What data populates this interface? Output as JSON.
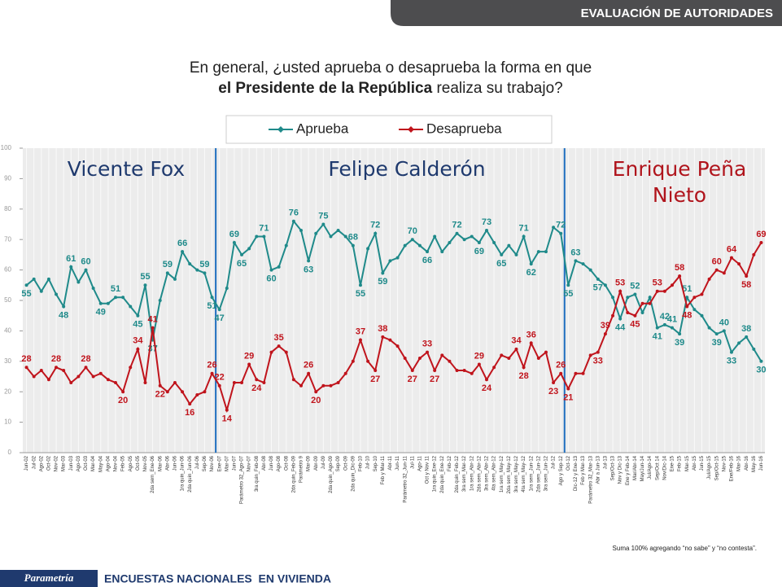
{
  "header": "EVALUACIÓN DE AUTORIDADES",
  "question": {
    "line1": "En general, ¿usted aprueba o desaprueba la forma en que",
    "line2_bold": "el Presidente de la República",
    "line2_rest": " realiza su trabajo?"
  },
  "periods": [
    "Vicente Fox",
    "Felipe Calderón",
    "Enrique Peña Nieto"
  ],
  "note": "Suma 100% agregando “no sabe” y “no contesta”.",
  "footer": {
    "brand": "Parametría",
    "text": "ENCUESTAS NACIONALES  EN VIVIENDA"
  },
  "chart_data": {
    "type": "line",
    "ylim": [
      0,
      100
    ],
    "yticks": [
      0,
      10,
      20,
      30,
      40,
      50,
      60,
      70,
      80,
      90,
      100
    ],
    "categories": [
      "Jun-02",
      "Jul-02",
      "Ago-02",
      "Oct-02",
      "Nov-02",
      "Mar-03",
      "Jun-03",
      "Ago-03",
      "Oct-03",
      "Mar-04",
      "May-04",
      "Ago-04",
      "Nov-04",
      "Feb-05",
      "Ago-05",
      "Oct-05",
      "Nov-05",
      "2da sem_Ene-06",
      "Mar-06",
      "Abr-06",
      "Jun-06",
      "1ra quin_Jun-06",
      "2da quin_Jun-06",
      "Jul-06",
      "Sep-06",
      "Nov-06",
      "Ene-07",
      "Mar-07",
      "Jun-07",
      "Parámetro 32_Ago-07",
      "Nov-07",
      "3ra quin_Feb-08",
      "Abr-08",
      "Jun-08",
      "Ago-08",
      "Oct-08",
      "2da quin_Feb-09",
      "Parámetro 9",
      "Mar-09",
      "Abr-09",
      "Jul-09",
      "2da quin_Ago-09",
      "Sep-09",
      "Oct-09",
      "2da quin_Dic-09",
      "Feb-10",
      "Jul-10",
      "Sep-10",
      "Feb y Mar-11",
      "Abr-11",
      "Jun-11",
      "Parámetro 32_Jun-11",
      "Jul-11",
      "Ago-11",
      "Oct y Nov 11",
      "1ra quin_Ene-12",
      "2da quin_Ene-12",
      "Feb-12",
      "2da quin_Feb-12",
      "3ra sem_Mar-12",
      "1ra sem_Abr-12",
      "2da sem_Abr-12",
      "3ra sem_Abr-12",
      "4ta sem_Abr-12",
      "1ra sem_May-12",
      "2da sem_May-12",
      "3ra sem_May-12",
      "4ta sem_May-12",
      "1ra sem_Jun-12",
      "2da sem_Jun-12",
      "3ra sem_Jun-12",
      "Jul-12",
      "Ago y Sep-12",
      "Oct-12",
      "Dic-12 y Ene-13",
      "Feb y Mar-13",
      "Parámetro 32_Mar-13",
      "Abr a Jun-13",
      "Jul-13",
      "Sep/Oct-13",
      "Nov y Dic-13",
      "Ene y Feb-14",
      "Mar/Abr-14",
      "May/Jun-14",
      "Jul/Ago-14",
      "Sep/Oct 14",
      "Nov/Dic-14",
      "Ene-15",
      "Feb-15",
      "Mar-15",
      "Abr-15",
      "Jun-15",
      "Jul/Ago-15",
      "Sep/Oct-15",
      "Nov-15",
      "Ene/Feb-16",
      "Mar-16",
      "Abr-16",
      "May-16",
      "Jun-16"
    ],
    "series": [
      {
        "name": "Aprueba",
        "color": "#1f8a8a",
        "values": [
          55,
          57,
          53,
          57,
          52,
          48,
          61,
          56,
          60,
          54,
          49,
          49,
          51,
          51,
          48,
          45,
          55,
          37,
          50,
          59,
          57,
          66,
          62,
          60,
          59,
          51,
          47,
          54,
          69,
          65,
          67,
          71,
          71,
          60,
          61,
          68,
          76,
          73,
          63,
          72,
          75,
          71,
          73,
          71,
          68,
          55,
          67,
          72,
          59,
          63,
          64,
          68,
          70,
          68,
          66,
          71,
          66,
          69,
          72,
          70,
          71,
          69,
          73,
          69,
          65,
          68,
          65,
          71,
          62,
          66,
          66,
          74,
          72,
          55,
          63,
          62,
          60,
          57,
          55,
          51,
          44,
          51,
          52,
          46,
          51,
          41,
          42,
          41,
          39,
          51,
          47,
          45,
          41,
          39,
          40,
          33,
          36,
          38,
          34,
          30
        ],
        "value_labels": [
          "55",
          null,
          null,
          null,
          null,
          "48",
          "61",
          null,
          "60",
          null,
          "49",
          null,
          "51",
          null,
          null,
          "45",
          "55",
          "37",
          null,
          "59",
          null,
          "66",
          null,
          null,
          "59",
          "51",
          "47",
          null,
          "69",
          "65",
          null,
          null,
          "71",
          "60",
          null,
          null,
          "76",
          null,
          "63",
          null,
          "75",
          null,
          null,
          null,
          "68",
          "55",
          null,
          "72",
          "59",
          null,
          null,
          null,
          "70",
          null,
          "66",
          null,
          null,
          null,
          "72",
          null,
          null,
          "69",
          "73",
          null,
          "65",
          null,
          null,
          "71",
          "62",
          null,
          null,
          null,
          "72",
          "55",
          "63",
          null,
          null,
          "57",
          null,
          null,
          "44",
          null,
          "52",
          null,
          null,
          "41",
          "42",
          "41",
          "39",
          "51",
          null,
          null,
          null,
          "39",
          "40",
          "33",
          null,
          "38",
          null,
          "30"
        ]
      },
      {
        "name": "Desaprueba",
        "color": "#c0141c",
        "values": [
          28,
          25,
          27,
          24,
          28,
          27,
          23,
          25,
          28,
          25,
          26,
          24,
          23,
          20,
          28,
          34,
          23,
          41,
          22,
          20,
          23,
          20,
          16,
          19,
          20,
          26,
          22,
          14,
          23,
          23,
          29,
          24,
          23,
          33,
          35,
          33,
          24,
          22,
          26,
          20,
          22,
          22,
          23,
          26,
          30,
          37,
          30,
          27,
          38,
          37,
          35,
          31,
          27,
          31,
          33,
          27,
          32,
          30,
          27,
          27,
          26,
          29,
          24,
          28,
          32,
          31,
          34,
          28,
          36,
          31,
          33,
          23,
          26,
          21,
          26,
          26,
          32,
          33,
          39,
          45,
          53,
          46,
          45,
          49,
          49,
          53,
          53,
          55,
          58,
          48,
          51,
          52,
          57,
          60,
          59,
          64,
          62,
          58,
          65,
          69
        ],
        "value_labels": [
          "28",
          null,
          null,
          null,
          "28",
          null,
          null,
          null,
          "28",
          null,
          null,
          null,
          null,
          "20",
          null,
          "34",
          null,
          "41",
          "22",
          null,
          null,
          null,
          "16",
          null,
          null,
          "26",
          "22",
          "14",
          null,
          null,
          "29",
          "24",
          null,
          null,
          "35",
          null,
          null,
          null,
          "26",
          "20",
          null,
          null,
          null,
          null,
          null,
          "37",
          null,
          "27",
          "38",
          null,
          null,
          null,
          "27",
          null,
          "33",
          "27",
          null,
          null,
          null,
          null,
          null,
          "29",
          "24",
          null,
          null,
          null,
          "34",
          "28",
          "36",
          null,
          null,
          "23",
          "26",
          "21",
          null,
          null,
          null,
          "33",
          "39",
          null,
          "53",
          null,
          "45",
          null,
          null,
          "53",
          null,
          null,
          "58",
          "48",
          null,
          null,
          null,
          "60",
          null,
          "64",
          null,
          "58",
          null,
          "69"
        ]
      }
    ]
  }
}
